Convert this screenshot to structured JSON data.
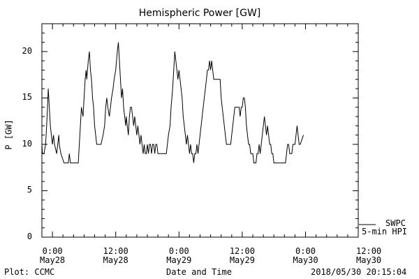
{
  "chart_data": {
    "type": "line",
    "title": "Hemispheric Power [GW]",
    "xlabel": "Date and Time",
    "ylabel": "P [GW]",
    "ylim": [
      0,
      23
    ],
    "yticks": [
      0,
      5,
      10,
      15,
      20
    ],
    "x_range_hours": [
      -2,
      58
    ],
    "x_origin": "2018-05-28 00:00",
    "xtick_labels": [
      {
        "hour": 0,
        "time": "0:00",
        "date": "May28"
      },
      {
        "hour": 12,
        "time": "12:00",
        "date": "May28"
      },
      {
        "hour": 24,
        "time": "0:00",
        "date": "May29"
      },
      {
        "hour": 36,
        "time": "12:00",
        "date": "May29"
      },
      {
        "hour": 48,
        "time": "0:00",
        "date": "May30"
      },
      {
        "hour": 60,
        "time": "12:00",
        "date": "May30"
      }
    ],
    "series": [
      {
        "name": "SWPC",
        "points": [
          [
            -3.6,
            15.5
          ],
          [
            -3.4,
            13.5
          ],
          [
            -3.2,
            14
          ],
          [
            -3.0,
            15
          ],
          [
            -2.8,
            13
          ],
          [
            -2.6,
            12
          ],
          [
            -2.4,
            11
          ],
          [
            -2.2,
            10
          ],
          [
            -1.9,
            9
          ],
          [
            -1.6,
            9
          ],
          [
            -1.3,
            10
          ],
          [
            -1.1,
            12
          ],
          [
            -0.9,
            14.5
          ],
          [
            -0.8,
            16
          ],
          [
            -0.6,
            14
          ],
          [
            -0.4,
            12
          ],
          [
            -0.2,
            11
          ],
          [
            0.0,
            10
          ],
          [
            0.2,
            11
          ],
          [
            0.4,
            10
          ],
          [
            0.6,
            9.5
          ],
          [
            0.8,
            9
          ],
          [
            1.0,
            10
          ],
          [
            1.2,
            11
          ],
          [
            1.3,
            10
          ],
          [
            1.6,
            9
          ],
          [
            1.9,
            8.5
          ],
          [
            2.2,
            8
          ],
          [
            2.6,
            8
          ],
          [
            3.0,
            8
          ],
          [
            3.2,
            9
          ],
          [
            3.4,
            8
          ],
          [
            3.8,
            8
          ],
          [
            4.2,
            8
          ],
          [
            4.6,
            8
          ],
          [
            4.9,
            8
          ],
          [
            5.0,
            9
          ],
          [
            5.1,
            10
          ],
          [
            5.3,
            12
          ],
          [
            5.5,
            14
          ],
          [
            5.8,
            13
          ],
          [
            6.0,
            15
          ],
          [
            6.2,
            17
          ],
          [
            6.4,
            18
          ],
          [
            6.5,
            17
          ],
          [
            6.8,
            19
          ],
          [
            7.0,
            20
          ],
          [
            7.2,
            18
          ],
          [
            7.4,
            17
          ],
          [
            7.6,
            15
          ],
          [
            7.8,
            14
          ],
          [
            8.0,
            12
          ],
          [
            8.2,
            11
          ],
          [
            8.4,
            10
          ],
          [
            8.8,
            10
          ],
          [
            9.2,
            10
          ],
          [
            9.6,
            11
          ],
          [
            9.9,
            12
          ],
          [
            10.1,
            14
          ],
          [
            10.3,
            15
          ],
          [
            10.5,
            14
          ],
          [
            10.8,
            13
          ],
          [
            11.0,
            14
          ],
          [
            11.2,
            15
          ],
          [
            11.5,
            16
          ],
          [
            11.7,
            17
          ],
          [
            12.0,
            18
          ],
          [
            12.3,
            20
          ],
          [
            12.5,
            21
          ],
          [
            12.7,
            19
          ],
          [
            12.9,
            17
          ],
          [
            13.1,
            15
          ],
          [
            13.3,
            16
          ],
          [
            13.5,
            14
          ],
          [
            13.7,
            13
          ],
          [
            13.9,
            12
          ],
          [
            14.0,
            13
          ],
          [
            14.2,
            12
          ],
          [
            14.4,
            11
          ],
          [
            14.6,
            13
          ],
          [
            14.8,
            14
          ],
          [
            15.0,
            14
          ],
          [
            15.2,
            13
          ],
          [
            15.4,
            12
          ],
          [
            15.6,
            13
          ],
          [
            15.8,
            12
          ],
          [
            16.0,
            11
          ],
          [
            16.2,
            12
          ],
          [
            16.4,
            11
          ],
          [
            16.6,
            10
          ],
          [
            16.8,
            11
          ],
          [
            17.0,
            10
          ],
          [
            17.2,
            9
          ],
          [
            17.4,
            10
          ],
          [
            17.6,
            9
          ],
          [
            17.8,
            9
          ],
          [
            18.0,
            10
          ],
          [
            18.2,
            9
          ],
          [
            18.4,
            10
          ],
          [
            18.6,
            10
          ],
          [
            18.8,
            9
          ],
          [
            19.0,
            10
          ],
          [
            19.2,
            10
          ],
          [
            19.4,
            9
          ],
          [
            19.6,
            10
          ],
          [
            19.8,
            10
          ],
          [
            20.0,
            9
          ],
          [
            20.4,
            9
          ],
          [
            20.8,
            9
          ],
          [
            21.2,
            9
          ],
          [
            21.6,
            9
          ],
          [
            21.8,
            10
          ],
          [
            22.0,
            11
          ],
          [
            22.3,
            12
          ],
          [
            22.5,
            14
          ],
          [
            22.8,
            16
          ],
          [
            23.0,
            18
          ],
          [
            23.2,
            20
          ],
          [
            23.4,
            19
          ],
          [
            23.6,
            18
          ],
          [
            23.8,
            17
          ],
          [
            24.0,
            18
          ],
          [
            24.2,
            17
          ],
          [
            24.4,
            16
          ],
          [
            24.6,
            15
          ],
          [
            24.8,
            13
          ],
          [
            25.0,
            12
          ],
          [
            25.2,
            11
          ],
          [
            25.4,
            10
          ],
          [
            25.6,
            11
          ],
          [
            25.8,
            10
          ],
          [
            26.0,
            9
          ],
          [
            26.2,
            10
          ],
          [
            26.4,
            9
          ],
          [
            26.6,
            9
          ],
          [
            26.8,
            8
          ],
          [
            27.0,
            9
          ],
          [
            27.2,
            9
          ],
          [
            27.4,
            10
          ],
          [
            27.6,
            9
          ],
          [
            27.8,
            10
          ],
          [
            28.0,
            11
          ],
          [
            28.2,
            12
          ],
          [
            28.4,
            13
          ],
          [
            28.6,
            14
          ],
          [
            28.8,
            15
          ],
          [
            29.0,
            16
          ],
          [
            29.2,
            17
          ],
          [
            29.4,
            18
          ],
          [
            29.6,
            18
          ],
          [
            29.8,
            19
          ],
          [
            30.0,
            18
          ],
          [
            30.2,
            19
          ],
          [
            30.4,
            18
          ],
          [
            30.6,
            17
          ],
          [
            31.0,
            17
          ],
          [
            31.4,
            17
          ],
          [
            31.8,
            17
          ],
          [
            32.0,
            15
          ],
          [
            32.2,
            14
          ],
          [
            32.4,
            13
          ],
          [
            32.6,
            12
          ],
          [
            32.8,
            11
          ],
          [
            33.0,
            10
          ],
          [
            33.2,
            10
          ],
          [
            33.4,
            10
          ],
          [
            33.6,
            10
          ],
          [
            33.8,
            10
          ],
          [
            34.0,
            11
          ],
          [
            34.2,
            12
          ],
          [
            34.4,
            13
          ],
          [
            34.6,
            14
          ],
          [
            35.0,
            14
          ],
          [
            35.4,
            14
          ],
          [
            35.6,
            13
          ],
          [
            35.8,
            14
          ],
          [
            36.0,
            14
          ],
          [
            36.2,
            15
          ],
          [
            36.4,
            15
          ],
          [
            36.6,
            14
          ],
          [
            36.8,
            12
          ],
          [
            37.0,
            11
          ],
          [
            37.2,
            10
          ],
          [
            37.4,
            10
          ],
          [
            37.6,
            9
          ],
          [
            37.8,
            9
          ],
          [
            38.0,
            9
          ],
          [
            38.2,
            8
          ],
          [
            38.6,
            8
          ],
          [
            38.8,
            9
          ],
          [
            39.0,
            9
          ],
          [
            39.2,
            10
          ],
          [
            39.4,
            9
          ],
          [
            39.6,
            10
          ],
          [
            39.8,
            11
          ],
          [
            40.0,
            12
          ],
          [
            40.2,
            13
          ],
          [
            40.4,
            12
          ],
          [
            40.6,
            11
          ],
          [
            40.8,
            12
          ],
          [
            41.0,
            11
          ],
          [
            41.2,
            10
          ],
          [
            41.4,
            10
          ],
          [
            41.6,
            9
          ],
          [
            41.8,
            9
          ],
          [
            42.0,
            8
          ],
          [
            42.6,
            8
          ],
          [
            43.2,
            8
          ],
          [
            43.8,
            8
          ],
          [
            44.2,
            8
          ],
          [
            44.4,
            9
          ],
          [
            44.6,
            10
          ],
          [
            44.8,
            10
          ],
          [
            45.0,
            9
          ],
          [
            45.4,
            9
          ],
          [
            45.6,
            10
          ],
          [
            46.0,
            10
          ],
          [
            46.2,
            11
          ],
          [
            46.4,
            12
          ],
          [
            46.6,
            11
          ],
          [
            46.8,
            10
          ],
          [
            47.0,
            10
          ],
          [
            47.6,
            11
          ]
        ]
      },
      {
        "name": "5-min HPI",
        "points": []
      }
    ],
    "legend_placement": "right-bottom",
    "footer_left": "Plot: CCMC",
    "footer_right": "2018/05/30 20:15:04"
  }
}
